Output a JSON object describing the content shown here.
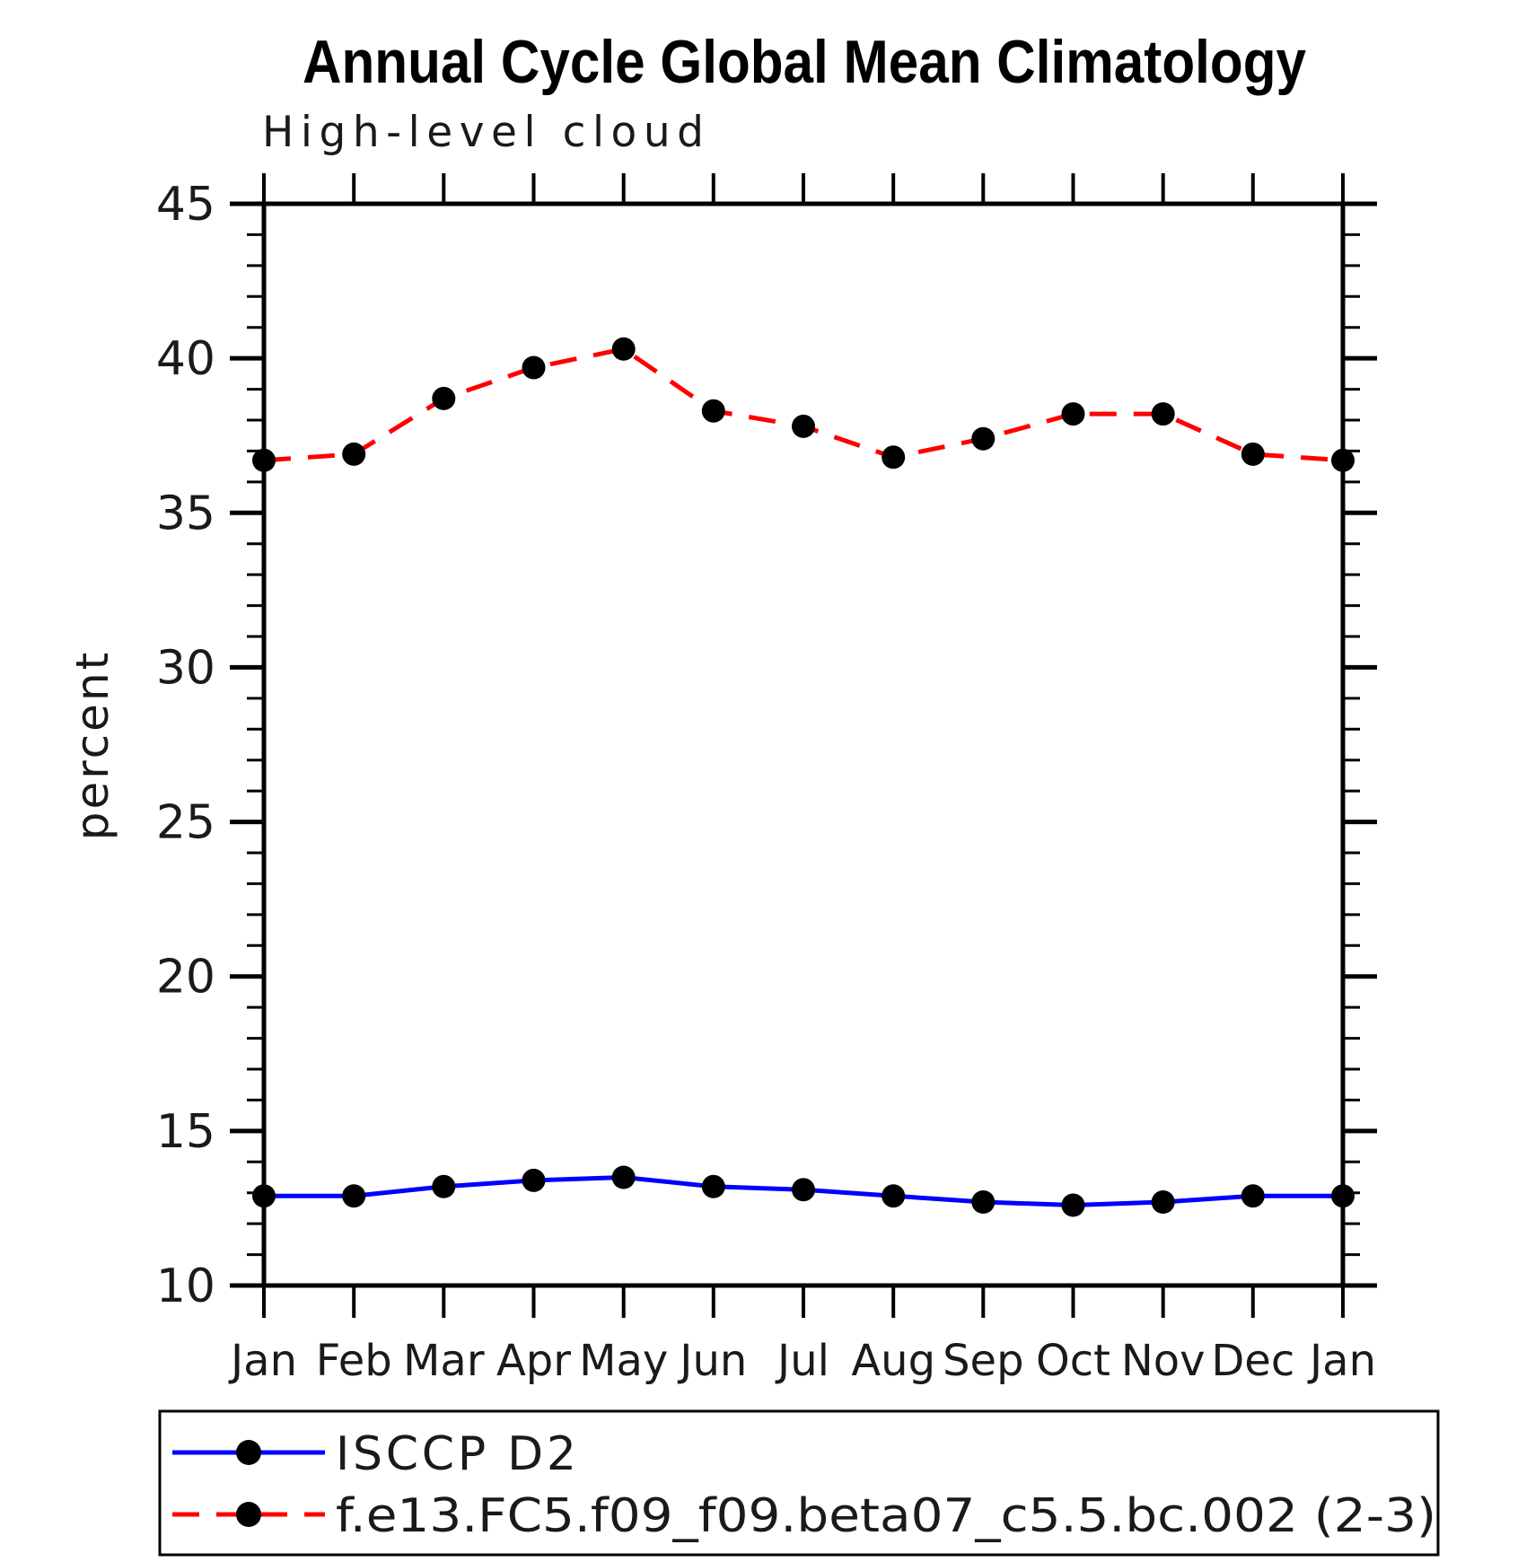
{
  "figure": {
    "background_color": "#ffffff",
    "axis_color": "#000000",
    "text_color": "#1a1a1a"
  },
  "chart_data": {
    "type": "line",
    "title": "Annual Cycle Global Mean Climatology",
    "subtitle": "High-level cloud",
    "xlabel": "",
    "ylabel": "percent",
    "ylim": [
      10,
      45
    ],
    "yticks": [
      10,
      15,
      20,
      25,
      30,
      35,
      40,
      45
    ],
    "ytick_labels": [
      "10",
      "15",
      "20",
      "25",
      "30",
      "35",
      "40",
      "45"
    ],
    "ytick_minor_interval": 1,
    "grid": false,
    "legend_position": "bottom-box",
    "categories": [
      "Jan",
      "Feb",
      "Mar",
      "Apr",
      "May",
      "Jun",
      "Jul",
      "Aug",
      "Sep",
      "Oct",
      "Nov",
      "Dec",
      "Jan"
    ],
    "series": [
      {
        "name": "ISCCP D2",
        "color": "#0000ff",
        "line_style": "solid",
        "marker": "filled-circle",
        "marker_color": "#000000",
        "values": [
          12.9,
          12.9,
          13.2,
          13.4,
          13.5,
          13.2,
          13.1,
          12.9,
          12.7,
          12.6,
          12.7,
          12.9,
          12.9
        ]
      },
      {
        "name": "f.e13.FC5.f09_f09.beta07_c5.5.bc.002 (2-3)",
        "color": "#ff0000",
        "line_style": "dashed",
        "marker": "filled-circle",
        "marker_color": "#000000",
        "values": [
          36.7,
          36.9,
          38.7,
          39.7,
          40.3,
          38.3,
          37.8,
          36.8,
          37.4,
          38.2,
          38.2,
          36.9,
          36.7
        ]
      }
    ]
  }
}
